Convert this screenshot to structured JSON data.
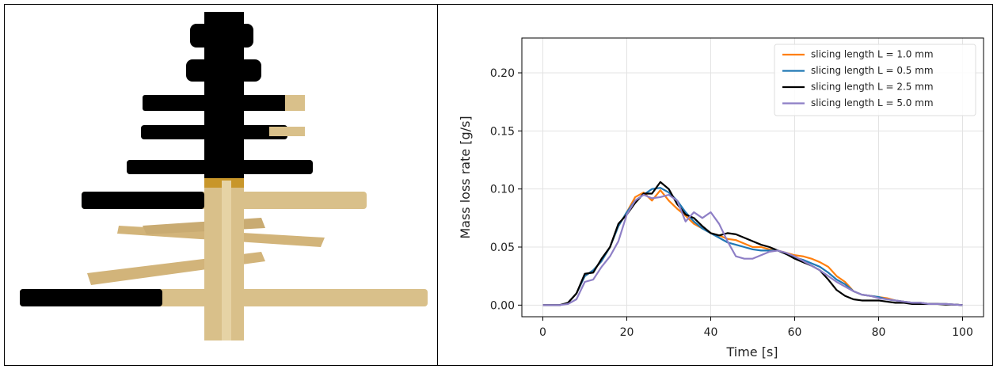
{
  "chart_data": {
    "type": "line",
    "xlabel": "Time [s]",
    "ylabel": "Mass loss rate [g/s]",
    "x": [
      0,
      2,
      4,
      6,
      8,
      10,
      12,
      14,
      16,
      18,
      20,
      22,
      24,
      26,
      28,
      30,
      32,
      34,
      36,
      38,
      40,
      42,
      44,
      46,
      48,
      50,
      52,
      54,
      56,
      58,
      60,
      62,
      64,
      66,
      68,
      70,
      72,
      74,
      76,
      78,
      80,
      82,
      84,
      86,
      88,
      90,
      92,
      94,
      96,
      98,
      100
    ],
    "series": [
      {
        "name": "slicing length L = 1.0 mm",
        "color": "#ff7f0e",
        "values": [
          0,
          0,
          0,
          0.002,
          0.01,
          0.025,
          0.03,
          0.038,
          0.05,
          0.068,
          0.08,
          0.093,
          0.097,
          0.09,
          0.099,
          0.09,
          0.083,
          0.077,
          0.07,
          0.066,
          0.062,
          0.06,
          0.057,
          0.056,
          0.053,
          0.05,
          0.05,
          0.048,
          0.047,
          0.045,
          0.043,
          0.042,
          0.04,
          0.037,
          0.033,
          0.025,
          0.02,
          0.012,
          0.009,
          0.008,
          0.007,
          0.006,
          0.004,
          0.003,
          0.002,
          0.002,
          0.001,
          0.001,
          0.001,
          0.0005,
          0
        ]
      },
      {
        "name": "slicing length L = 0.5 mm",
        "color": "#1f77b4",
        "values": [
          0,
          0,
          0,
          0.002,
          0.01,
          0.025,
          0.03,
          0.038,
          0.05,
          0.068,
          0.08,
          0.09,
          0.095,
          0.1,
          0.101,
          0.097,
          0.09,
          0.08,
          0.072,
          0.066,
          0.062,
          0.058,
          0.054,
          0.052,
          0.05,
          0.048,
          0.047,
          0.047,
          0.047,
          0.044,
          0.041,
          0.039,
          0.036,
          0.033,
          0.028,
          0.022,
          0.018,
          0.012,
          0.009,
          0.008,
          0.007,
          0.005,
          0.004,
          0.003,
          0.002,
          0.002,
          0.001,
          0.001,
          0.001,
          0.0005,
          0
        ]
      },
      {
        "name": "slicing length L = 2.5 mm",
        "color": "#000000",
        "values": [
          0,
          0,
          0,
          0.002,
          0.01,
          0.027,
          0.028,
          0.04,
          0.05,
          0.07,
          0.078,
          0.088,
          0.096,
          0.096,
          0.106,
          0.1,
          0.087,
          0.078,
          0.075,
          0.068,
          0.062,
          0.06,
          0.062,
          0.061,
          0.058,
          0.055,
          0.052,
          0.05,
          0.047,
          0.044,
          0.04,
          0.037,
          0.034,
          0.03,
          0.022,
          0.013,
          0.008,
          0.005,
          0.004,
          0.004,
          0.004,
          0.003,
          0.002,
          0.002,
          0.001,
          0.001,
          0.001,
          0.001,
          0.0005,
          0.0005,
          0
        ]
      },
      {
        "name": "slicing length L = 5.0 mm",
        "color": "#8e7fc6",
        "values": [
          0,
          0,
          0,
          0.001,
          0.005,
          0.02,
          0.022,
          0.033,
          0.042,
          0.055,
          0.078,
          0.09,
          0.095,
          0.092,
          0.093,
          0.095,
          0.09,
          0.072,
          0.08,
          0.075,
          0.08,
          0.07,
          0.055,
          0.042,
          0.04,
          0.04,
          0.043,
          0.046,
          0.047,
          0.045,
          0.042,
          0.038,
          0.034,
          0.03,
          0.025,
          0.02,
          0.016,
          0.012,
          0.009,
          0.008,
          0.006,
          0.005,
          0.004,
          0.003,
          0.002,
          0.002,
          0.001,
          0.001,
          0.001,
          0.0005,
          0
        ]
      }
    ],
    "xlim": [
      -5,
      105
    ],
    "ylim": [
      -0.01,
      0.23
    ],
    "xticks": [
      0,
      20,
      40,
      60,
      80,
      100
    ],
    "yticks": [
      {
        "value": 0,
        "label": "0.00"
      },
      {
        "value": 0.05,
        "label": "0.05"
      },
      {
        "value": 0.1,
        "label": "0.10"
      },
      {
        "value": 0.15,
        "label": "0.15"
      },
      {
        "value": 0.2,
        "label": "0.20"
      }
    ],
    "grid": true,
    "legend": "upper right"
  }
}
